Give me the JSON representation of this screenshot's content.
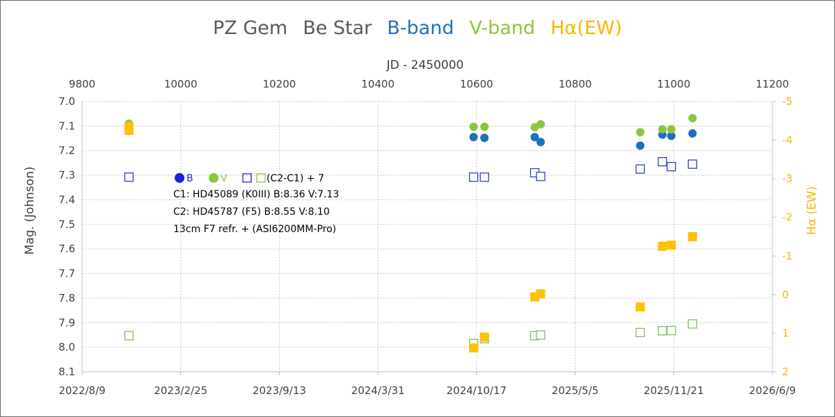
{
  "chart_data": {
    "type": "scatter",
    "title_parts": [
      {
        "text": "PZ Gem",
        "color": "#595959"
      },
      {
        "text": "Be Star",
        "color": "#595959"
      },
      {
        "text": "B-band",
        "color": "#1f6fbf"
      },
      {
        "text": "V-band",
        "color": "#8cc63f"
      },
      {
        "text": "Hα(EW)",
        "color": "#f5b800"
      }
    ],
    "x_top_label": "JD - 2450000",
    "x_top_ticks": [
      "9800",
      "10000",
      "10200",
      "10400",
      "10600",
      "10800",
      "11000",
      "11200"
    ],
    "x_top_range": [
      9800,
      11200
    ],
    "x_bottom_ticks": [
      "2022/8/9",
      "2023/2/25",
      "2023/9/13",
      "2024/3/31",
      "2024/10/17",
      "2025/5/5",
      "2025/11/21",
      "2026/6/9"
    ],
    "y_left_label": "Mag. (Johnson)",
    "y_left_ticks": [
      "7.0",
      "7.1",
      "7.2",
      "7.3",
      "7.4",
      "7.5",
      "7.6",
      "7.7",
      "7.8",
      "7.9",
      "8.0",
      "8.1"
    ],
    "y_left_range": [
      7.0,
      8.1
    ],
    "y_left_inverted": true,
    "y_right_label": "Hα (EW)",
    "y_right_ticks": [
      "-5",
      "-4",
      "-3",
      "-2",
      "-1",
      "0",
      "1",
      "2"
    ],
    "y_right_range": [
      -5,
      2
    ],
    "y_right_inverted": true,
    "grid": "dotted",
    "series": [
      {
        "name": "B",
        "marker": "circle-filled",
        "color": "#1f6fbf",
        "axis": "left",
        "x": [
          9895,
          10594,
          10616,
          10718,
          10730,
          10932,
          10977,
          10995,
          11038
        ],
        "y": [
          7.12,
          7.145,
          7.148,
          7.145,
          7.165,
          7.18,
          7.135,
          7.14,
          7.13
        ]
      },
      {
        "name": "V",
        "marker": "circle-filled",
        "color": "#8cc63f",
        "axis": "left",
        "x": [
          9895,
          10594,
          10616,
          10718,
          10730,
          10932,
          10977,
          10995,
          11038
        ],
        "y": [
          7.09,
          7.103,
          7.103,
          7.105,
          7.093,
          7.125,
          7.113,
          7.113,
          7.068
        ]
      },
      {
        "name": "(C2-C1) + 7 B",
        "marker": "square-open",
        "color": "#2e3fbf",
        "axis": "left",
        "x": [
          9895,
          10594,
          10616,
          10718,
          10730,
          10932,
          10977,
          10995,
          11038
        ],
        "y": [
          7.308,
          7.308,
          7.308,
          7.29,
          7.305,
          7.275,
          7.245,
          7.265,
          7.255
        ]
      },
      {
        "name": "(C2-C1) + 7 V",
        "marker": "square-open",
        "color": "#7cc05a",
        "axis": "left",
        "x": [
          9895,
          10594,
          10616,
          10718,
          10730,
          10932,
          10977,
          10995,
          11038
        ],
        "y": [
          7.953,
          7.985,
          7.965,
          7.953,
          7.95,
          7.94,
          7.933,
          7.932,
          7.905
        ]
      },
      {
        "name": "Hα(EW)",
        "marker": "square-filled",
        "color": "#ffc000",
        "axis": "right",
        "x": [
          9895,
          9895,
          10594,
          10616,
          10718,
          10730,
          10932,
          10977,
          10995,
          11038
        ],
        "y": [
          -4.35,
          -4.25,
          1.38,
          1.1,
          0.06,
          -0.02,
          0.32,
          -1.25,
          -1.28,
          -1.5
        ]
      }
    ],
    "legend": {
      "position": "upper-left-inside",
      "b_label": "B",
      "v_label": "V",
      "diff_label": "(C2-C1) + 7"
    },
    "annotations": [
      "C1: HD45089 (K0III)  B:8.36 V:7.13",
      "C2: HD45787 (F5)  B:8.55 V:8.10",
      "13cm  F7 refr.  +    (ASI6200MM-Pro)"
    ]
  }
}
